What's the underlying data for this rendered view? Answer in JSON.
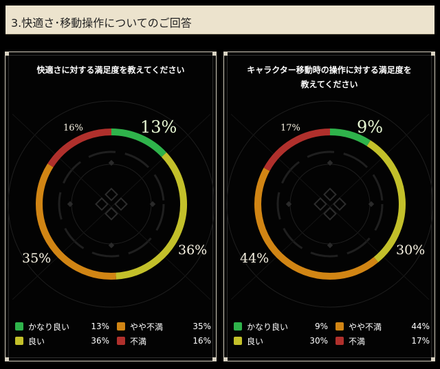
{
  "header": {
    "title": "3.快適さ･移動操作についてのご回答"
  },
  "colors": {
    "very_good": "#2fb34b",
    "good": "#c3c02a",
    "somewhat_dissatisfied": "#d18514",
    "dissatisfied": "#b0302c"
  },
  "chart_data": [
    {
      "type": "pie",
      "donut": true,
      "title": "快適さに対する満足度を教えてください",
      "labels": [
        "かなり良い",
        "良い",
        "やや不満",
        "不満"
      ],
      "values": [
        13,
        36,
        35,
        16
      ],
      "value_labels": [
        "13%",
        "36%",
        "35%",
        "16%"
      ],
      "legend": [
        {
          "label": "かなり良い",
          "value": "13%"
        },
        {
          "label": "良い",
          "value": "36%"
        },
        {
          "label": "やや不満",
          "value": "35%"
        },
        {
          "label": "不満",
          "value": "16%"
        }
      ]
    },
    {
      "type": "pie",
      "donut": true,
      "title": "キャラクター移動時の操作に対する満足度を教えてください",
      "title_lines": [
        "キャラクター移動時の操作に対する満足度を",
        "教えてください"
      ],
      "labels": [
        "かなり良い",
        "良い",
        "やや不満",
        "不満"
      ],
      "values": [
        9,
        30,
        44,
        17
      ],
      "value_labels": [
        "9%",
        "30%",
        "44%",
        "17%"
      ],
      "legend": [
        {
          "label": "かなり良い",
          "value": "9%"
        },
        {
          "label": "良い",
          "value": "30%"
        },
        {
          "label": "やや不満",
          "value": "44%"
        },
        {
          "label": "不満",
          "value": "17%"
        }
      ]
    }
  ]
}
